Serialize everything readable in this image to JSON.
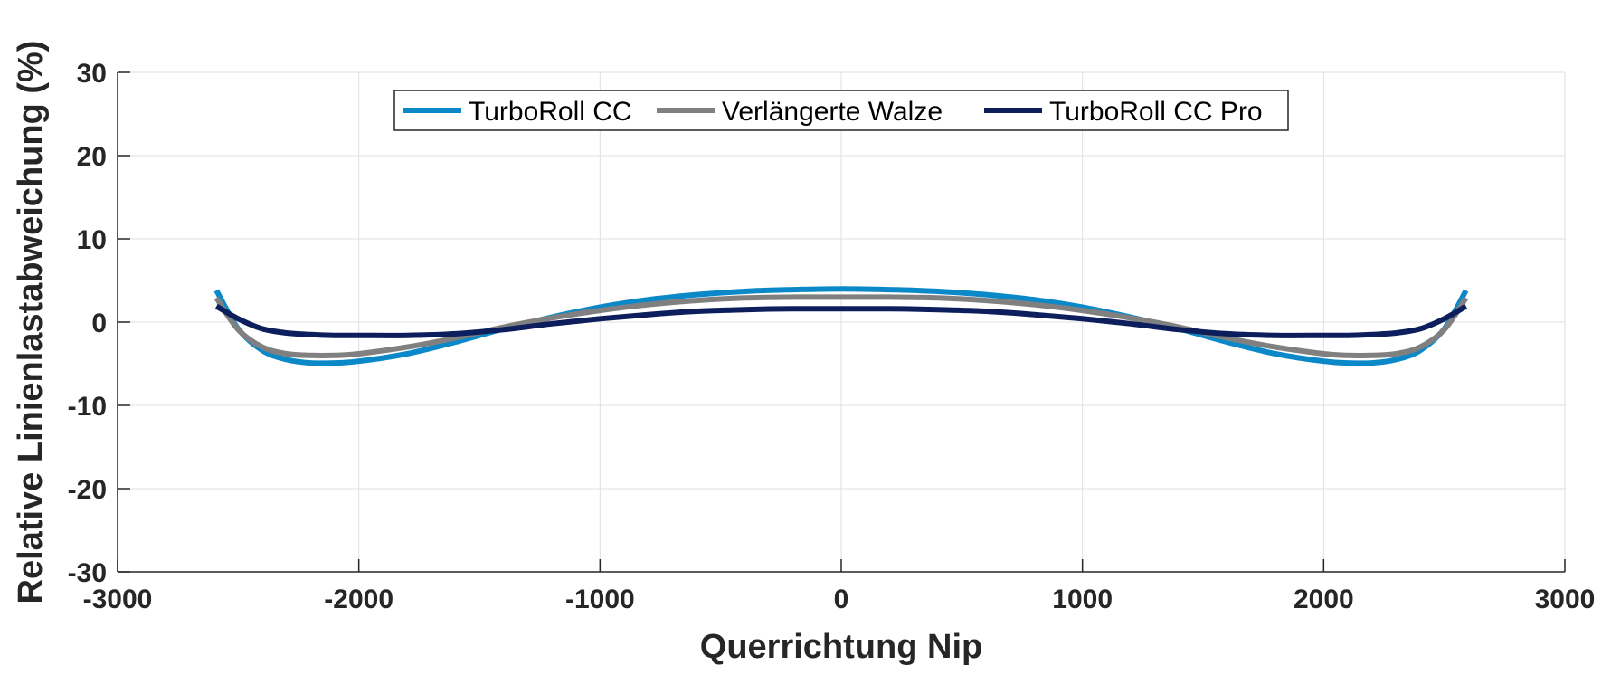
{
  "chart_data": {
    "type": "line",
    "xlabel": "Querrichtung Nip",
    "ylabel": "Relative Linienlastabweichung (%)",
    "xlim": [
      -3000,
      3000
    ],
    "ylim": [
      -30,
      30
    ],
    "xticks": [
      -3000,
      -2000,
      -1000,
      0,
      1000,
      2000,
      3000
    ],
    "yticks": [
      -30,
      -20,
      -10,
      0,
      10,
      20,
      30
    ],
    "xtick_labels": [
      "-3000",
      "-2000",
      "-1000",
      "0",
      "1000",
      "2000",
      "3000"
    ],
    "ytick_labels": [
      "-30",
      "-20",
      "-10",
      "0",
      "10",
      "20",
      "30"
    ],
    "grid": true,
    "legend_position": "top-center",
    "series": [
      {
        "name": "TurboRoll CC",
        "color": "#0a88c8",
        "x": [
          -2590,
          -2500,
          -2400,
          -2300,
          -2200,
          -2100,
          -2000,
          -1800,
          -1600,
          -1400,
          -1200,
          -1000,
          -800,
          -600,
          -400,
          -200,
          0,
          200,
          400,
          600,
          800,
          1000,
          1200,
          1400,
          1600,
          1800,
          2000,
          2100,
          2200,
          2300,
          2400,
          2500,
          2590
        ],
        "y": [
          3.8,
          -0.8,
          -3.4,
          -4.5,
          -4.9,
          -4.9,
          -4.7,
          -3.8,
          -2.4,
          -0.8,
          0.6,
          1.8,
          2.7,
          3.3,
          3.7,
          3.9,
          4.0,
          3.9,
          3.7,
          3.3,
          2.7,
          1.8,
          0.6,
          -0.8,
          -2.4,
          -3.8,
          -4.7,
          -4.9,
          -4.9,
          -4.5,
          -3.4,
          -0.8,
          3.8
        ]
      },
      {
        "name": "Verlängerte Walze",
        "color": "#808080",
        "x": [
          -2590,
          -2500,
          -2400,
          -2300,
          -2200,
          -2100,
          -2000,
          -1800,
          -1600,
          -1400,
          -1200,
          -1000,
          -800,
          -600,
          -400,
          -200,
          0,
          200,
          400,
          600,
          800,
          1000,
          1200,
          1400,
          1600,
          1800,
          2000,
          2100,
          2200,
          2300,
          2400,
          2500,
          2590
        ],
        "y": [
          2.9,
          -0.9,
          -3.0,
          -3.8,
          -4.0,
          -4.0,
          -3.8,
          -3.0,
          -1.9,
          -0.6,
          0.5,
          1.4,
          2.1,
          2.6,
          2.9,
          3.0,
          3.0,
          3.0,
          2.9,
          2.6,
          2.1,
          1.4,
          0.5,
          -0.6,
          -1.9,
          -3.0,
          -3.8,
          -4.0,
          -4.0,
          -3.8,
          -3.0,
          -0.9,
          2.9
        ]
      },
      {
        "name": "TurboRoll CC Pro",
        "color": "#0c1e5c",
        "x": [
          -2590,
          -2500,
          -2400,
          -2300,
          -2200,
          -2100,
          -2000,
          -1800,
          -1600,
          -1400,
          -1200,
          -1000,
          -800,
          -600,
          -400,
          -200,
          0,
          200,
          400,
          600,
          800,
          1000,
          1200,
          1400,
          1600,
          1800,
          2000,
          2100,
          2200,
          2300,
          2400,
          2500,
          2590
        ],
        "y": [
          1.9,
          0.4,
          -0.8,
          -1.3,
          -1.5,
          -1.6,
          -1.6,
          -1.6,
          -1.4,
          -0.9,
          -0.2,
          0.4,
          0.9,
          1.3,
          1.5,
          1.6,
          1.6,
          1.6,
          1.5,
          1.3,
          0.9,
          0.4,
          -0.2,
          -0.9,
          -1.4,
          -1.6,
          -1.6,
          -1.6,
          -1.5,
          -1.3,
          -0.8,
          0.4,
          1.9
        ]
      }
    ]
  }
}
